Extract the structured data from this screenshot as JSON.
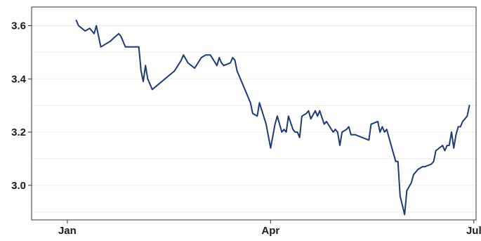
{
  "chart_data": {
    "type": "line",
    "title": "",
    "xlabel": "",
    "ylabel": "",
    "x_axis": {
      "type": "date",
      "tick_labels": [
        "Jan",
        "Apr",
        "Jul"
      ],
      "tick_dates": [
        "2024-01-01",
        "2024-04-01",
        "2024-07-01"
      ],
      "range": [
        "2023-12-16",
        "2024-07-02"
      ]
    },
    "ylim": [
      2.87,
      3.67
    ],
    "y_ticks": [
      3.0,
      3.2,
      3.4,
      3.6
    ],
    "y_tick_labels": [
      "3.0",
      "3.2",
      "3.4",
      "3.6"
    ],
    "grid": "faint horizontal",
    "series": [
      {
        "color": "#1f3a70",
        "x": [
          "2024-01-05",
          "2024-01-06",
          "2024-01-09",
          "2024-01-11",
          "2024-01-13",
          "2024-01-14",
          "2024-01-16",
          "2024-01-20",
          "2024-01-24",
          "2024-01-25",
          "2024-01-27",
          "2024-01-28",
          "2024-02-02",
          "2024-02-03",
          "2024-02-04",
          "2024-02-05",
          "2024-02-06",
          "2024-02-08",
          "2024-02-18",
          "2024-02-21",
          "2024-02-22",
          "2024-02-24",
          "2024-02-27",
          "2024-03-01",
          "2024-03-03",
          "2024-03-05",
          "2024-03-08",
          "2024-03-09",
          "2024-03-10",
          "2024-03-11",
          "2024-03-14",
          "2024-03-15",
          "2024-03-16",
          "2024-03-17",
          "2024-03-20",
          "2024-03-23",
          "2024-03-24",
          "2024-03-26",
          "2024-03-27",
          "2024-03-30",
          "2024-04-01",
          "2024-04-03",
          "2024-04-04",
          "2024-04-06",
          "2024-04-07",
          "2024-04-08",
          "2024-04-09",
          "2024-04-11",
          "2024-04-12",
          "2024-04-13",
          "2024-04-14",
          "2024-04-15",
          "2024-04-17",
          "2024-04-18",
          "2024-04-19",
          "2024-04-21",
          "2024-04-22",
          "2024-04-23",
          "2024-04-25",
          "2024-04-26",
          "2024-04-29",
          "2024-04-30",
          "2024-05-01",
          "2024-05-02",
          "2024-05-03",
          "2024-05-05",
          "2024-05-06",
          "2024-05-07",
          "2024-05-09",
          "2024-05-15",
          "2024-05-16",
          "2024-05-19",
          "2024-05-20",
          "2024-05-21",
          "2024-05-22",
          "2024-05-23",
          "2024-05-24",
          "2024-05-27",
          "2024-05-28",
          "2024-05-29",
          "2024-05-31",
          "2024-06-01",
          "2024-06-03",
          "2024-06-04",
          "2024-06-05",
          "2024-06-06",
          "2024-06-08",
          "2024-06-09",
          "2024-06-12",
          "2024-06-13",
          "2024-06-14",
          "2024-06-17",
          "2024-06-18",
          "2024-06-19",
          "2024-06-20",
          "2024-06-21",
          "2024-06-22",
          "2024-06-23",
          "2024-06-24",
          "2024-06-25",
          "2024-06-26",
          "2024-06-27",
          "2024-06-28",
          "2024-06-29"
        ],
        "y": [
          3.62,
          3.6,
          3.58,
          3.59,
          3.57,
          3.6,
          3.52,
          3.54,
          3.57,
          3.56,
          3.52,
          3.52,
          3.52,
          3.43,
          3.39,
          3.45,
          3.4,
          3.36,
          3.43,
          3.47,
          3.49,
          3.46,
          3.44,
          3.48,
          3.49,
          3.49,
          3.45,
          3.48,
          3.46,
          3.45,
          3.46,
          3.48,
          3.47,
          3.43,
          3.37,
          3.31,
          3.27,
          3.26,
          3.31,
          3.23,
          3.14,
          3.23,
          3.26,
          3.2,
          3.21,
          3.2,
          3.26,
          3.21,
          3.2,
          3.2,
          3.18,
          3.26,
          3.27,
          3.28,
          3.25,
          3.28,
          3.26,
          3.28,
          3.23,
          3.24,
          3.2,
          3.21,
          3.2,
          3.15,
          3.2,
          3.21,
          3.22,
          3.19,
          3.19,
          3.17,
          3.23,
          3.24,
          3.2,
          3.22,
          3.2,
          3.21,
          3.18,
          3.09,
          3.09,
          2.96,
          2.89,
          2.98,
          3.01,
          3.04,
          3.05,
          3.06,
          3.07,
          3.07,
          3.08,
          3.09,
          3.13,
          3.15,
          3.13,
          3.15,
          3.15,
          3.2,
          3.14,
          3.19,
          3.22,
          3.22,
          3.24,
          3.25,
          3.26,
          3.3
        ]
      }
    ]
  }
}
